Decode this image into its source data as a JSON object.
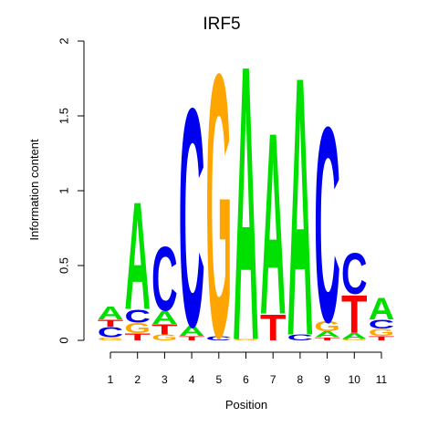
{
  "chart_data": {
    "type": "sequence-logo",
    "title": "IRF5",
    "xlabel": "Position",
    "ylabel": "Information content",
    "ylim": [
      0,
      2
    ],
    "yticks": [
      "0",
      "0.5",
      "1",
      "1.5",
      "2"
    ],
    "xticks": [
      "1",
      "2",
      "3",
      "4",
      "5",
      "6",
      "7",
      "8",
      "9",
      "10",
      "11"
    ],
    "colors": {
      "A": "#00e000",
      "C": "#0000f0",
      "G": "#ffa500",
      "T": "#ff0000"
    },
    "positions": [
      {
        "position": "1",
        "letters": [
          {
            "base": "G",
            "height": 0.02
          },
          {
            "base": "C",
            "height": 0.07
          },
          {
            "base": "T",
            "height": 0.05
          },
          {
            "base": "A",
            "height": 0.09
          }
        ]
      },
      {
        "position": "2",
        "letters": [
          {
            "base": "T",
            "height": 0.05
          },
          {
            "base": "G",
            "height": 0.07
          },
          {
            "base": "C",
            "height": 0.09
          },
          {
            "base": "A",
            "height": 0.74
          }
        ]
      },
      {
        "position": "3",
        "letters": [
          {
            "base": "G",
            "height": 0.04
          },
          {
            "base": "T",
            "height": 0.07
          },
          {
            "base": "A",
            "height": 0.09
          },
          {
            "base": "C",
            "height": 0.44
          }
        ]
      },
      {
        "position": "4",
        "letters": [
          {
            "base": "T",
            "height": 0.03
          },
          {
            "base": "A",
            "height": 0.07
          },
          {
            "base": "C",
            "height": 1.5
          }
        ]
      },
      {
        "position": "5",
        "letters": [
          {
            "base": "C",
            "height": 0.03
          },
          {
            "base": "G",
            "height": 1.81
          }
        ]
      },
      {
        "position": "6",
        "letters": [
          {
            "base": "G",
            "height": 0.01
          },
          {
            "base": "A",
            "height": 1.89
          }
        ]
      },
      {
        "position": "7",
        "letters": [
          {
            "base": "T",
            "height": 0.18
          },
          {
            "base": "A",
            "height": 1.25
          }
        ]
      },
      {
        "position": "8",
        "letters": [
          {
            "base": "C",
            "height": 0.04
          },
          {
            "base": "A",
            "height": 1.78
          }
        ]
      },
      {
        "position": "9",
        "letters": [
          {
            "base": "T",
            "height": 0.02
          },
          {
            "base": "A",
            "height": 0.04
          },
          {
            "base": "G",
            "height": 0.07
          },
          {
            "base": "C",
            "height": 1.34
          }
        ]
      },
      {
        "position": "10",
        "letters": [
          {
            "base": "G",
            "height": 0.01
          },
          {
            "base": "A",
            "height": 0.04
          },
          {
            "base": "T",
            "height": 0.26
          },
          {
            "base": "C",
            "height": 0.28
          }
        ]
      },
      {
        "position": "11",
        "letters": [
          {
            "base": "T",
            "height": 0.03
          },
          {
            "base": "G",
            "height": 0.05
          },
          {
            "base": "C",
            "height": 0.06
          },
          {
            "base": "A",
            "height": 0.15
          }
        ]
      }
    ]
  }
}
